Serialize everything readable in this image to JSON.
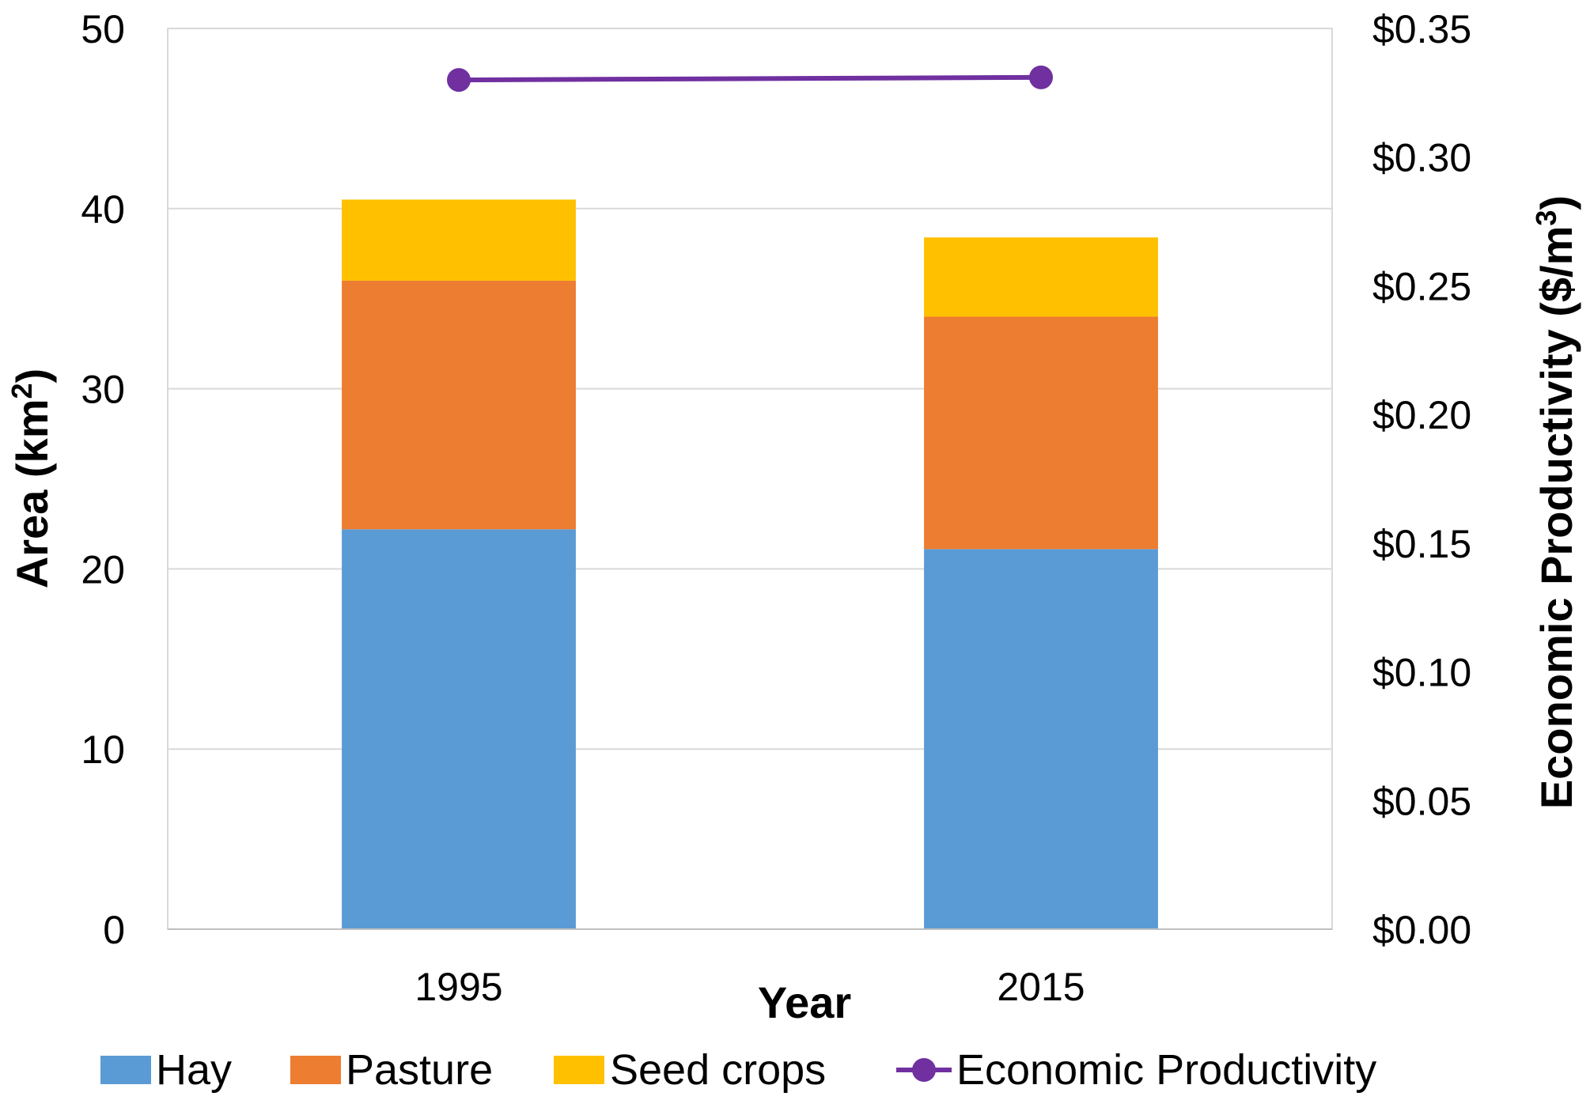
{
  "chart_data": {
    "type": "bar",
    "stacked": true,
    "categories": [
      "1995",
      "2015"
    ],
    "series": [
      {
        "name": "Hay",
        "values": [
          22.2,
          21.1
        ],
        "color": "#5B9BD5"
      },
      {
        "name": "Pasture",
        "values": [
          13.8,
          12.9
        ],
        "color": "#ED7D31"
      },
      {
        "name": "Seed crops",
        "values": [
          4.5,
          4.4
        ],
        "color": "#FFC000"
      }
    ],
    "line_series": {
      "name": "Economic Productivity",
      "values": [
        0.33,
        0.331
      ],
      "color": "#7030A0",
      "axis": "right"
    },
    "xlabel": "Year",
    "ylabel": "Area (km²)",
    "ylabel_parts": {
      "pre": "Area (km",
      "sup": "2",
      "post": ")"
    },
    "y2label": "Economic Productivity ($/m³)",
    "y2label_parts": {
      "pre": "Economic Productivity ($/m",
      "sup": "3",
      "post": ")"
    },
    "ylim": [
      0,
      50
    ],
    "yticks": [
      0,
      10,
      20,
      30,
      40,
      50
    ],
    "y2lim": [
      0,
      0.35
    ],
    "y2ticks": [
      "$0.00",
      "$0.05",
      "$0.10",
      "$0.15",
      "$0.20",
      "$0.25",
      "$0.30",
      "$0.35"
    ],
    "grid": true,
    "legend_position": "bottom"
  }
}
